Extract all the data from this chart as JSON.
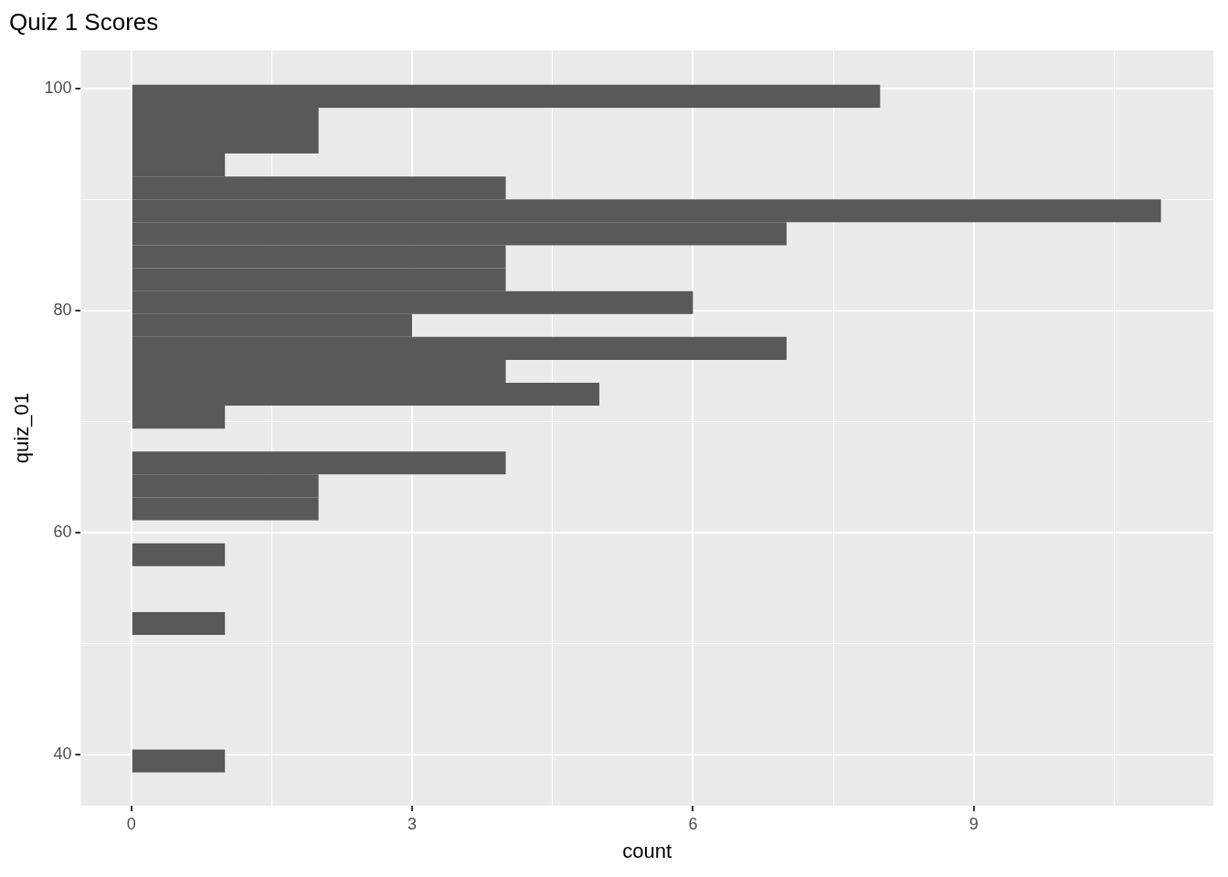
{
  "chart_data": {
    "type": "histogram",
    "orientation": "horizontal",
    "title": "Quiz 1 Scores",
    "xlabel": "count",
    "ylabel": "quiz_01",
    "bins": [
      38.4,
      40.47,
      42.53,
      44.6,
      46.66,
      48.73,
      50.79,
      52.86,
      54.92,
      56.99,
      59.05,
      61.12,
      63.18,
      65.25,
      67.31,
      69.38,
      71.44,
      73.51,
      75.57,
      77.64,
      79.7,
      81.77,
      83.83,
      85.9,
      87.96,
      90.03,
      92.09,
      94.16,
      96.22,
      98.29,
      100.35
    ],
    "values": [
      1,
      0,
      0,
      0,
      0,
      0,
      1,
      0,
      0,
      1,
      0,
      2,
      2,
      4,
      0,
      1,
      5,
      4,
      7,
      3,
      6,
      4,
      4,
      7,
      11,
      4,
      1,
      2,
      2,
      8
    ],
    "color": "#595959",
    "xlim": [
      -0.54,
      11.56
    ],
    "xticks": [
      0,
      {
        "value": 1.5,
        "label": null
      },
      3,
      {
        "value": 4.5,
        "label": null
      },
      6,
      {
        "value": 7.5,
        "label": null
      },
      9,
      {
        "value": 10.5,
        "label": null
      }
    ],
    "ylim": [
      35.4,
      103.45
    ],
    "yticks": [
      40,
      {
        "value": 50,
        "label": null
      },
      60,
      {
        "value": 70,
        "label": null
      },
      80,
      {
        "value": 90,
        "label": null
      },
      100
    ],
    "grid": true,
    "legend": false
  }
}
